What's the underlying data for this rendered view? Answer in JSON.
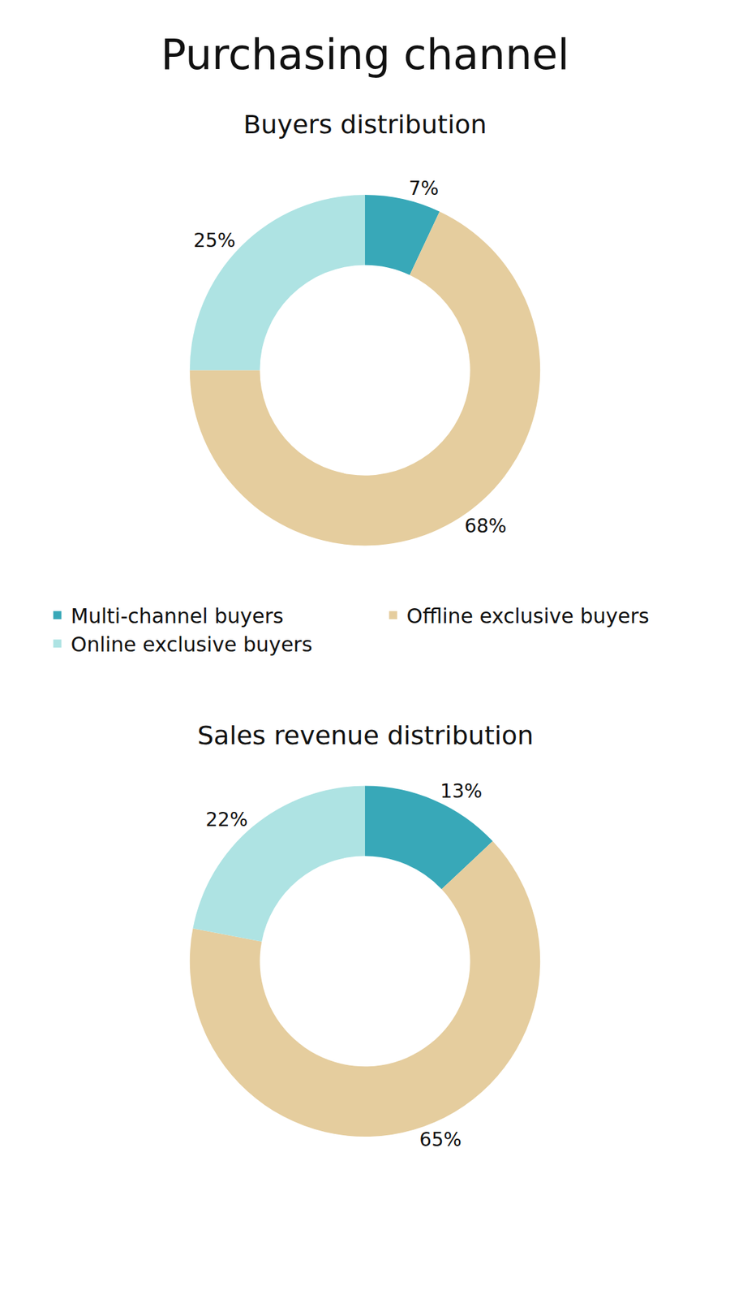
{
  "title": "Purchasing channel",
  "chart_data": [
    {
      "type": "donut",
      "title": "Buyers distribution",
      "categories": [
        "Multi-channel buyers",
        "Offline exclusive buyers",
        "Online exclusive buyers"
      ],
      "values": [
        7,
        68,
        25
      ],
      "value_labels": [
        "7%",
        "68%",
        "25%"
      ],
      "colors": [
        "#38a8b8",
        "#e5cd9e",
        "#aee3e3"
      ],
      "data_labels": true,
      "legend": "bottom"
    },
    {
      "type": "donut",
      "title": "Sales revenue distribution",
      "categories": [
        "Multi-channel buyers",
        "Offline exclusive buyers",
        "Online exclusive buyers"
      ],
      "values": [
        13,
        65,
        22
      ],
      "value_labels": [
        "13%",
        "65%",
        "22%"
      ],
      "colors": [
        "#38a8b8",
        "#e5cd9e",
        "#aee3e3"
      ],
      "data_labels": true,
      "legend": "bottom"
    }
  ]
}
